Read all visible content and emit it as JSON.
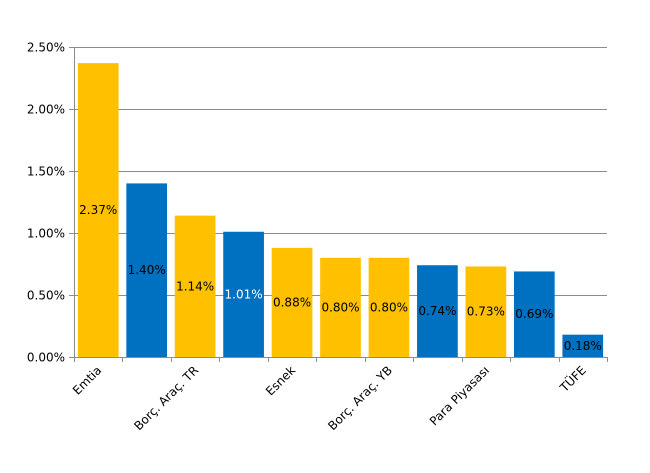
{
  "chart_data": {
    "type": "bar",
    "categories": [
      "Emtia",
      "",
      "Borç. Araç. TR",
      "",
      "Esnek",
      "",
      "Borç. Araç. YB",
      "",
      "Para Piyasası",
      "",
      "TÜFE"
    ],
    "values": [
      2.37,
      1.4,
      1.14,
      1.01,
      0.88,
      0.8,
      0.8,
      0.74,
      0.73,
      0.69,
      0.18
    ],
    "value_labels": [
      "2.37%",
      "1.40%",
      "1.14%",
      "1.01%",
      "0.88%",
      "0.80%",
      "0.80%",
      "0.74%",
      "0.73%",
      "0.69%",
      "0.18%"
    ],
    "bar_colors": [
      "#FFC000",
      "#0070C0",
      "#FFC000",
      "#0070C0",
      "#FFC000",
      "#FFC000",
      "#FFC000",
      "#0070C0",
      "#FFC000",
      "#0070C0",
      "#0070C0"
    ],
    "label_colors": [
      "#000000",
      "#000000",
      "#000000",
      "#ffffff",
      "#000000",
      "#000000",
      "#000000",
      "#000000",
      "#000000",
      "#000000",
      "#000000"
    ],
    "yticks": [
      0,
      0.5,
      1.0,
      1.5,
      2.0,
      2.5
    ],
    "ytick_labels": [
      "0.00%",
      "0.50%",
      "1.00%",
      "1.50%",
      "2.00%",
      "2.50%"
    ],
    "ylim": [
      0,
      2.5
    ],
    "grid": true,
    "title": "",
    "xlabel": "",
    "ylabel": ""
  }
}
